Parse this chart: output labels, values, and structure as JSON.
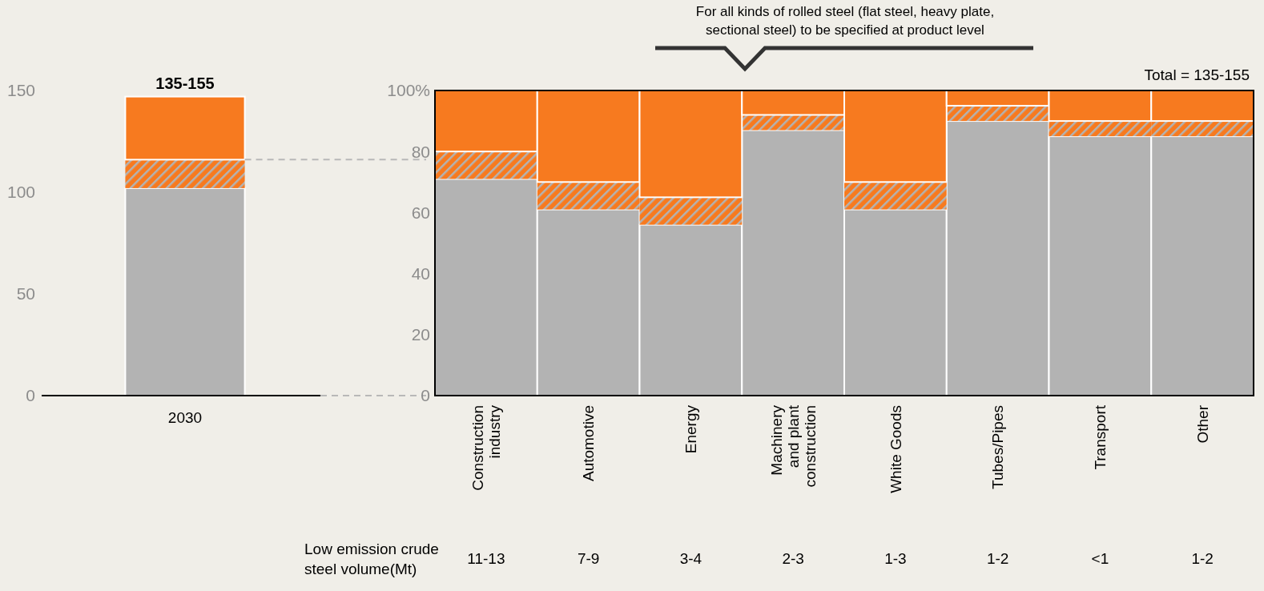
{
  "chart_data": [
    {
      "type": "bar",
      "stacked": true,
      "categories": [
        "2030"
      ],
      "ylim": [
        0,
        150
      ],
      "yticks": [
        0,
        50,
        100,
        150
      ],
      "totals": [
        "135-155"
      ],
      "series": [
        {
          "color": "#b3b3b3",
          "values": [
            102
          ]
        },
        {
          "color": "#f77a1f",
          "values": [
            14
          ]
        },
        {
          "color": "#f77a1f",
          "values": [
            31
          ]
        }
      ]
    },
    {
      "type": "bar",
      "stacked": true,
      "categories": [
        "Construction industry",
        "Automotive",
        "Energy",
        "Machinery and plant construction",
        "White Goods",
        "Tubes/Pipes",
        "Transport",
        "Other"
      ],
      "ylim": [
        0,
        100
      ],
      "yticks": [
        0,
        20,
        40,
        60,
        80,
        {
          "value": 100,
          "label": "100%"
        }
      ],
      "series": [
        {
          "color": "#b3b3b3",
          "values": [
            71,
            61,
            56,
            87,
            61,
            90,
            85,
            85
          ]
        },
        {
          "color": "#f77a1f",
          "values": [
            9,
            9,
            9,
            5,
            9,
            5,
            5,
            5
          ]
        },
        {
          "color": "#f77a1f",
          "values": [
            20,
            30,
            35,
            8,
            30,
            5,
            10,
            10
          ]
        }
      ],
      "annotations": [
        "For all kinds of rolled steel (flat steel, heavy plate, sectional steel) to be specified at product level",
        "Total = 135-155",
        "Low emission crude steel volume(Mt)",
        "11-13",
        "7-9",
        "3-4",
        "2-3",
        "1-3",
        "1-2",
        "<1",
        "1-2"
      ]
    }
  ]
}
